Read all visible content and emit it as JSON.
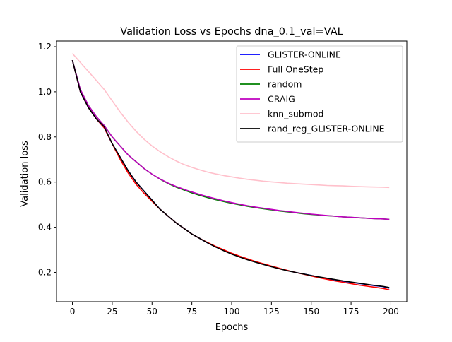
{
  "chart_data": {
    "type": "line",
    "title": "Validation Loss vs Epochs dna_0.1_val=VAL",
    "xlabel": "Epochs",
    "ylabel": "Validation loss",
    "xlim": [
      -10,
      210
    ],
    "ylim": [
      0.07,
      1.225
    ],
    "xticks": [
      0,
      25,
      50,
      75,
      100,
      125,
      150,
      175,
      200
    ],
    "yticks": [
      0.2,
      0.4,
      0.6,
      0.8,
      1.0,
      1.2
    ],
    "ytick_labels": [
      "0.2",
      "0.4",
      "0.6",
      "0.8",
      "1.0",
      "1.2"
    ],
    "grid": false,
    "legend_position": "top-right",
    "x": [
      0,
      5,
      10,
      15,
      20,
      25,
      30,
      35,
      40,
      45,
      50,
      55,
      60,
      65,
      70,
      75,
      80,
      85,
      90,
      95,
      100,
      105,
      110,
      115,
      120,
      125,
      130,
      135,
      140,
      145,
      150,
      155,
      160,
      165,
      170,
      175,
      180,
      185,
      190,
      195,
      199
    ],
    "series": [
      {
        "name": "GLISTER-ONLINE",
        "color": "#0000ff",
        "values": [
          1.14,
          1.0,
          0.93,
          0.88,
          0.84,
          0.77,
          0.71,
          0.65,
          0.6,
          0.56,
          0.52,
          0.48,
          0.45,
          0.42,
          0.395,
          0.37,
          0.35,
          0.33,
          0.313,
          0.298,
          0.283,
          0.27,
          0.258,
          0.247,
          0.236,
          0.226,
          0.217,
          0.208,
          0.2,
          0.193,
          0.186,
          0.179,
          0.173,
          0.167,
          0.161,
          0.156,
          0.151,
          0.146,
          0.141,
          0.137,
          0.13
        ]
      },
      {
        "name": "Full OneStep",
        "color": "#ff0000",
        "values": [
          1.14,
          1.0,
          0.93,
          0.88,
          0.84,
          0.77,
          0.7,
          0.64,
          0.59,
          0.55,
          0.515,
          0.48,
          0.45,
          0.42,
          0.395,
          0.37,
          0.35,
          0.332,
          0.315,
          0.3,
          0.285,
          0.272,
          0.26,
          0.248,
          0.238,
          0.228,
          0.218,
          0.209,
          0.2,
          0.192,
          0.184,
          0.176,
          0.169,
          0.162,
          0.156,
          0.15,
          0.144,
          0.139,
          0.134,
          0.129,
          0.123
        ]
      },
      {
        "name": "random",
        "color": "#008000",
        "values": [
          1.14,
          1.01,
          0.94,
          0.89,
          0.85,
          0.8,
          0.76,
          0.72,
          0.69,
          0.66,
          0.635,
          0.613,
          0.594,
          0.578,
          0.565,
          0.552,
          0.541,
          0.531,
          0.522,
          0.514,
          0.506,
          0.499,
          0.493,
          0.487,
          0.482,
          0.477,
          0.472,
          0.468,
          0.464,
          0.46,
          0.457,
          0.454,
          0.451,
          0.449,
          0.446,
          0.444,
          0.442,
          0.44,
          0.438,
          0.437,
          0.435
        ]
      },
      {
        "name": "CRAIG",
        "color": "#bf00bf",
        "values": [
          1.14,
          1.01,
          0.94,
          0.89,
          0.85,
          0.8,
          0.76,
          0.72,
          0.69,
          0.66,
          0.635,
          0.614,
          0.596,
          0.581,
          0.568,
          0.556,
          0.545,
          0.535,
          0.526,
          0.517,
          0.509,
          0.502,
          0.495,
          0.489,
          0.484,
          0.479,
          0.474,
          0.47,
          0.466,
          0.462,
          0.458,
          0.455,
          0.452,
          0.449,
          0.446,
          0.444,
          0.442,
          0.44,
          0.438,
          0.437,
          0.435
        ]
      },
      {
        "name": "knn_submod",
        "color": "#ffc0cb",
        "values": [
          1.17,
          1.13,
          1.09,
          1.05,
          1.01,
          0.96,
          0.91,
          0.865,
          0.825,
          0.79,
          0.76,
          0.735,
          0.713,
          0.694,
          0.678,
          0.665,
          0.654,
          0.644,
          0.636,
          0.629,
          0.623,
          0.617,
          0.612,
          0.608,
          0.604,
          0.601,
          0.598,
          0.595,
          0.593,
          0.591,
          0.589,
          0.587,
          0.585,
          0.584,
          0.583,
          0.581,
          0.58,
          0.579,
          0.578,
          0.577,
          0.576
        ]
      },
      {
        "name": "rand_reg_GLISTER-ONLINE",
        "color": "#000000",
        "values": [
          1.14,
          1.0,
          0.93,
          0.88,
          0.845,
          0.77,
          0.71,
          0.65,
          0.6,
          0.56,
          0.52,
          0.48,
          0.45,
          0.42,
          0.395,
          0.37,
          0.35,
          0.33,
          0.312,
          0.296,
          0.281,
          0.268,
          0.256,
          0.245,
          0.235,
          0.225,
          0.216,
          0.207,
          0.2,
          0.193,
          0.186,
          0.18,
          0.174,
          0.168,
          0.162,
          0.157,
          0.152,
          0.147,
          0.142,
          0.138,
          0.133
        ]
      }
    ]
  }
}
